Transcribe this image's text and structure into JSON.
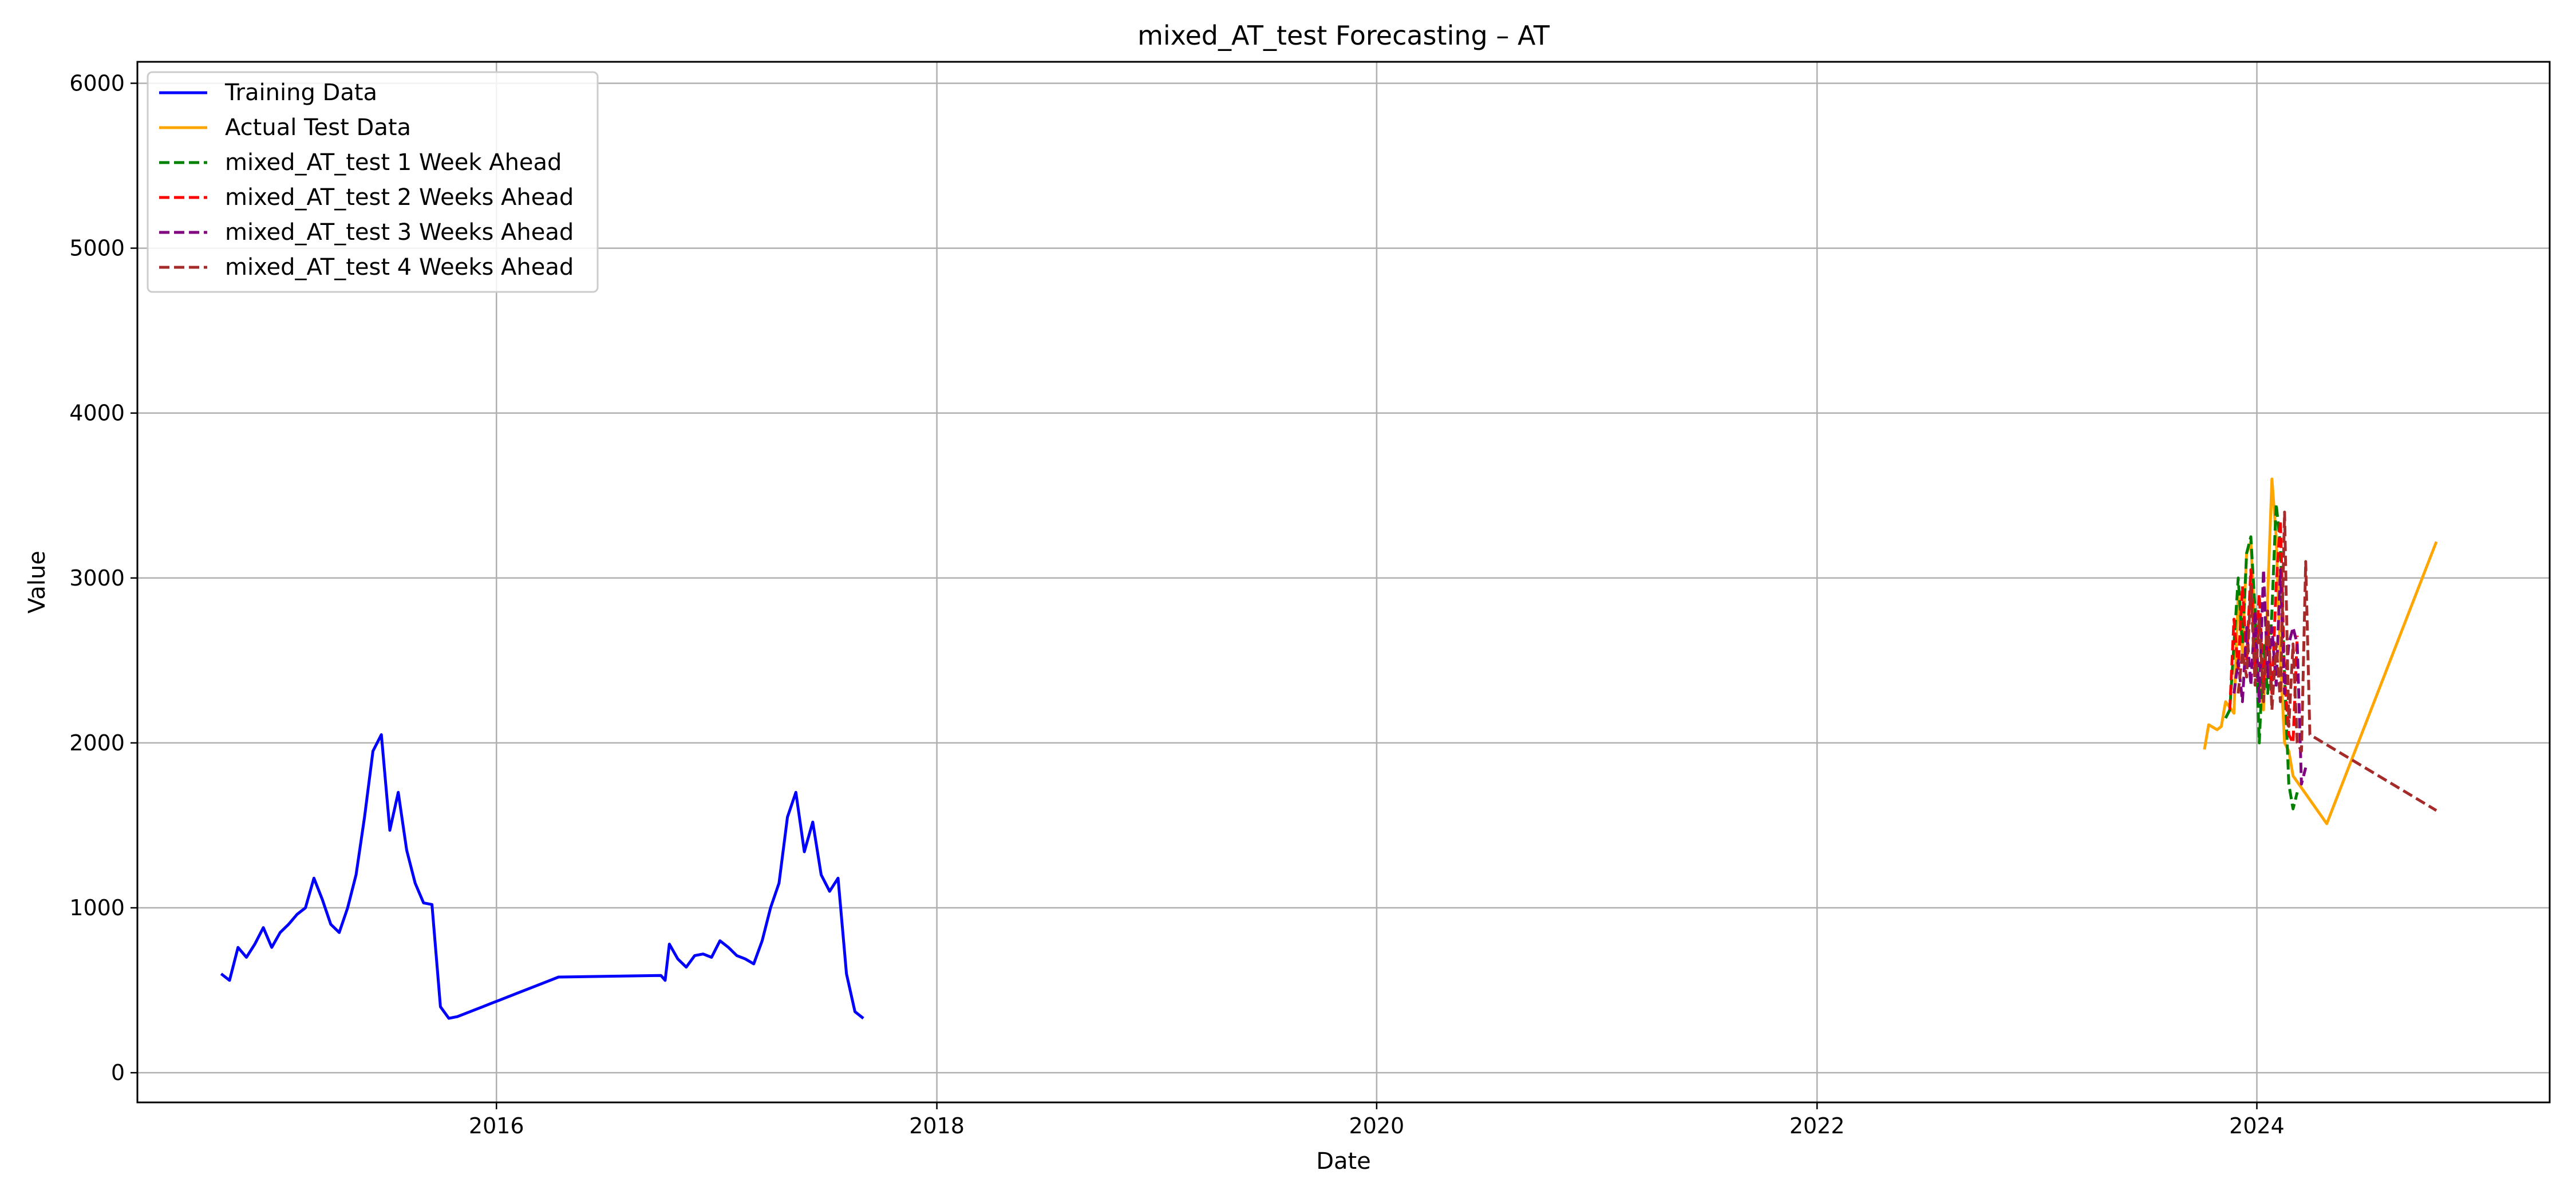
{
  "chart_data": {
    "type": "line",
    "title": "mixed_AT_test Forecasting – AT",
    "xlabel": "Date",
    "ylabel": "Value",
    "xlim": [
      "2014-05-15",
      "2025-05-01"
    ],
    "ylim": [
      -180,
      6130
    ],
    "grid": true,
    "legend_position": "top-left",
    "x_ticks": [
      "2016",
      "2018",
      "2020",
      "2022",
      "2024"
    ],
    "y_ticks": [
      0,
      1000,
      2000,
      3000,
      4000,
      5000,
      6000
    ],
    "series": [
      {
        "name": "Training Data",
        "color": "#0000ff",
        "style": "solid",
        "points": [
          [
            "2014-10-01",
            600
          ],
          [
            "2014-10-15",
            560
          ],
          [
            "2014-10-29",
            760
          ],
          [
            "2014-11-12",
            700
          ],
          [
            "2014-11-26",
            780
          ],
          [
            "2014-12-10",
            880
          ],
          [
            "2014-12-24",
            760
          ],
          [
            "2015-01-07",
            850
          ],
          [
            "2015-01-21",
            900
          ],
          [
            "2015-02-04",
            960
          ],
          [
            "2015-02-18",
            1000
          ],
          [
            "2015-03-04",
            1180
          ],
          [
            "2015-03-18",
            1050
          ],
          [
            "2015-04-01",
            900
          ],
          [
            "2015-04-15",
            850
          ],
          [
            "2015-04-29",
            1000
          ],
          [
            "2015-05-13",
            1200
          ],
          [
            "2015-05-27",
            1550
          ],
          [
            "2015-06-10",
            1950
          ],
          [
            "2015-06-24",
            2050
          ],
          [
            "2015-07-08",
            1470
          ],
          [
            "2015-07-22",
            1700
          ],
          [
            "2015-08-05",
            1350
          ],
          [
            "2015-08-19",
            1150
          ],
          [
            "2015-09-02",
            1030
          ],
          [
            "2015-09-16",
            1020
          ],
          [
            "2015-09-30",
            400
          ],
          [
            "2015-10-14",
            330
          ],
          [
            "2015-10-28",
            340
          ],
          [
            "2015-11-11",
            360
          ],
          [
            "2015-11-25",
            380
          ],
          [
            "2015-12-09",
            400
          ],
          [
            "2015-12-23",
            420
          ],
          [
            "2016-01-06",
            440
          ],
          [
            "2016-01-20",
            460
          ],
          [
            "2016-02-03",
            480
          ],
          [
            "2016-02-17",
            500
          ],
          [
            "2016-03-02",
            520
          ],
          [
            "2016-03-16",
            540
          ],
          [
            "2016-03-30",
            560
          ],
          [
            "2016-04-13",
            580
          ],
          [
            "2016-09-30",
            590
          ],
          [
            "2016-10-07",
            560
          ],
          [
            "2016-10-14",
            780
          ],
          [
            "2016-10-28",
            690
          ],
          [
            "2016-11-11",
            640
          ],
          [
            "2016-11-25",
            710
          ],
          [
            "2016-12-09",
            720
          ],
          [
            "2016-12-23",
            700
          ],
          [
            "2017-01-06",
            800
          ],
          [
            "2017-01-20",
            760
          ],
          [
            "2017-02-03",
            710
          ],
          [
            "2017-02-17",
            690
          ],
          [
            "2017-03-03",
            660
          ],
          [
            "2017-03-17",
            800
          ],
          [
            "2017-03-31",
            1000
          ],
          [
            "2017-04-14",
            1150
          ],
          [
            "2017-04-28",
            1550
          ],
          [
            "2017-05-12",
            1700
          ],
          [
            "2017-05-26",
            1340
          ],
          [
            "2017-06-09",
            1520
          ],
          [
            "2017-06-23",
            1200
          ],
          [
            "2017-07-07",
            1100
          ],
          [
            "2017-07-21",
            1180
          ],
          [
            "2017-08-04",
            600
          ],
          [
            "2017-08-18",
            370
          ],
          [
            "2017-09-01",
            330
          ]
        ]
      },
      {
        "name": "Actual Test Data",
        "color": "#ffa500",
        "style": "solid",
        "points": [
          [
            "2023-10-06",
            1960
          ],
          [
            "2023-10-13",
            2110
          ],
          [
            "2023-10-27",
            2080
          ],
          [
            "2023-11-03",
            2100
          ],
          [
            "2023-11-10",
            2250
          ],
          [
            "2023-11-24",
            2180
          ],
          [
            "2023-12-01",
            2900
          ],
          [
            "2023-12-08",
            2550
          ],
          [
            "2023-12-15",
            3150
          ],
          [
            "2023-12-22",
            3220
          ],
          [
            "2023-12-29",
            2700
          ],
          [
            "2024-01-05",
            2350
          ],
          [
            "2024-01-12",
            2200
          ],
          [
            "2024-01-19",
            2900
          ],
          [
            "2024-01-26",
            3600
          ],
          [
            "2024-02-02",
            3250
          ],
          [
            "2024-02-09",
            2500
          ],
          [
            "2024-02-16",
            2000
          ],
          [
            "2024-02-23",
            1950
          ],
          [
            "2024-03-01",
            1800
          ],
          [
            "2024-04-26",
            1510
          ],
          [
            "2024-10-25",
            3220
          ]
        ]
      },
      {
        "name": "mixed_AT_test 1 Week Ahead",
        "color": "#008000",
        "style": "dashed",
        "points": [
          [
            "2023-11-10",
            2150
          ],
          [
            "2023-11-17",
            2200
          ],
          [
            "2023-11-24",
            2600
          ],
          [
            "2023-12-01",
            3000
          ],
          [
            "2023-12-08",
            2600
          ],
          [
            "2023-12-15",
            3150
          ],
          [
            "2023-12-22",
            3250
          ],
          [
            "2023-12-29",
            2800
          ],
          [
            "2024-01-05",
            2000
          ],
          [
            "2024-01-12",
            2600
          ],
          [
            "2024-01-19",
            2300
          ],
          [
            "2024-01-26",
            2800
          ],
          [
            "2024-02-02",
            3450
          ],
          [
            "2024-02-09",
            3200
          ],
          [
            "2024-02-16",
            2400
          ],
          [
            "2024-02-23",
            1750
          ],
          [
            "2024-03-01",
            1600
          ],
          [
            "2024-03-08",
            1700
          ]
        ]
      },
      {
        "name": "mixed_AT_test 2 Weeks Ahead",
        "color": "#ff0000",
        "style": "dashed",
        "points": [
          [
            "2023-11-17",
            2200
          ],
          [
            "2023-11-24",
            2750
          ],
          [
            "2023-12-01",
            2450
          ],
          [
            "2023-12-08",
            2950
          ],
          [
            "2023-12-15",
            2500
          ],
          [
            "2023-12-22",
            3050
          ],
          [
            "2023-12-29",
            2450
          ],
          [
            "2024-01-05",
            2900
          ],
          [
            "2024-01-12",
            2350
          ],
          [
            "2024-01-19",
            2700
          ],
          [
            "2024-01-26",
            2300
          ],
          [
            "2024-02-02",
            2950
          ],
          [
            "2024-02-09",
            3350
          ],
          [
            "2024-02-16",
            2400
          ],
          [
            "2024-02-23",
            2050
          ],
          [
            "2024-03-01",
            2000
          ],
          [
            "2024-03-08",
            2650
          ]
        ]
      },
      {
        "name": "mixed_AT_test 3 Weeks Ahead",
        "color": "#800080",
        "style": "dashed",
        "points": [
          [
            "2023-11-24",
            2300
          ],
          [
            "2023-12-01",
            2500
          ],
          [
            "2023-12-08",
            2250
          ],
          [
            "2023-12-15",
            2700
          ],
          [
            "2023-12-22",
            2350
          ],
          [
            "2023-12-29",
            2800
          ],
          [
            "2024-01-05",
            2250
          ],
          [
            "2024-01-12",
            3050
          ],
          [
            "2024-01-19",
            2400
          ],
          [
            "2024-01-26",
            2700
          ],
          [
            "2024-02-02",
            2350
          ],
          [
            "2024-02-09",
            3050
          ],
          [
            "2024-02-16",
            2300
          ],
          [
            "2024-02-23",
            2600
          ],
          [
            "2024-03-01",
            2700
          ],
          [
            "2024-03-08",
            2600
          ],
          [
            "2024-03-15",
            1750
          ],
          [
            "2024-03-22",
            1850
          ]
        ]
      },
      {
        "name": "mixed_AT_test 4 Weeks Ahead",
        "color": "#a52a2a",
        "style": "dashed",
        "points": [
          [
            "2023-12-01",
            2300
          ],
          [
            "2023-12-08",
            2550
          ],
          [
            "2023-12-15",
            2400
          ],
          [
            "2023-12-22",
            2950
          ],
          [
            "2023-12-29",
            2350
          ],
          [
            "2024-01-05",
            2750
          ],
          [
            "2024-01-12",
            2250
          ],
          [
            "2024-01-19",
            2800
          ],
          [
            "2024-01-26",
            2200
          ],
          [
            "2024-02-02",
            2600
          ],
          [
            "2024-02-09",
            2250
          ],
          [
            "2024-02-16",
            3400
          ],
          [
            "2024-02-23",
            2100
          ],
          [
            "2024-03-01",
            2600
          ],
          [
            "2024-03-08",
            2000
          ],
          [
            "2024-03-15",
            1950
          ],
          [
            "2024-03-22",
            3100
          ],
          [
            "2024-03-29",
            2050
          ],
          [
            "2024-10-25",
            1590
          ]
        ]
      }
    ]
  }
}
